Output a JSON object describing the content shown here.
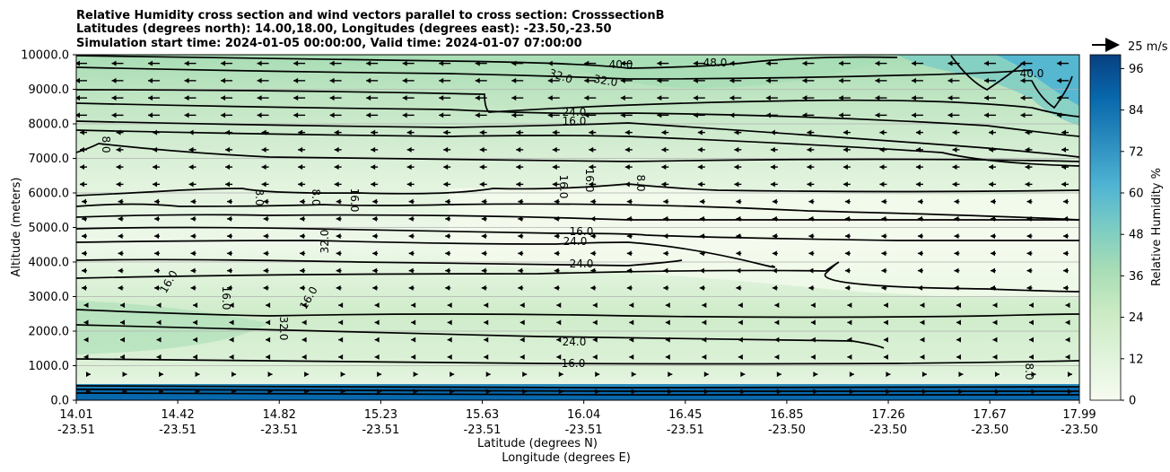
{
  "chart_data": {
    "type": "heatmap",
    "title": [
      "Relative Humidity cross section and wind vectors parallel to cross section: CrosssectionB",
      "Latitudes (degrees north): 14.00,18.00, Longitudes (degrees east): -23.50,-23.50",
      "Simulation start time: 2024-01-05 00:00:00, Valid time: 2024-01-07 07:00:00"
    ],
    "xlabel_lat": "Latitude (degrees N)",
    "xlabel_lon": "Longitude (degrees E)",
    "ylabel": "Altitude (meters)",
    "x_ticks": [
      {
        "lat": "14.01",
        "lon": "-23.51"
      },
      {
        "lat": "14.42",
        "lon": "-23.51"
      },
      {
        "lat": "14.82",
        "lon": "-23.51"
      },
      {
        "lat": "15.23",
        "lon": "-23.51"
      },
      {
        "lat": "15.63",
        "lon": "-23.51"
      },
      {
        "lat": "16.04",
        "lon": "-23.51"
      },
      {
        "lat": "16.45",
        "lon": "-23.51"
      },
      {
        "lat": "16.85",
        "lon": "-23.50"
      },
      {
        "lat": "17.26",
        "lon": "-23.50"
      },
      {
        "lat": "17.67",
        "lon": "-23.50"
      },
      {
        "lat": "17.99",
        "lon": "-23.50"
      }
    ],
    "y_ticks": [
      "0.0",
      "1000.0",
      "2000.0",
      "3000.0",
      "4000.0",
      "5000.0",
      "6000.0",
      "7000.0",
      "8000.0",
      "9000.0",
      "10000.0"
    ],
    "ylim": [
      0,
      10000
    ],
    "grid": "horizontal",
    "colorbar": {
      "label": "Relative Humidity %",
      "ticks": [
        "0",
        "12",
        "24",
        "36",
        "48",
        "60",
        "72",
        "84",
        "96"
      ],
      "range": [
        0,
        100
      ],
      "colors": [
        "#f7fcf0",
        "#e0f3db",
        "#ccebc5",
        "#a8ddb5",
        "#7bccc4",
        "#4eb3d3",
        "#2b8cbe",
        "#0868ac",
        "#084081"
      ]
    },
    "wind_key": "25 m/s",
    "contour_labels": [
      "48.0",
      "40.0",
      "40.0",
      "32.0",
      "32.0",
      "24.0",
      "16.0",
      "8.0",
      "16.0",
      "16.0",
      "16.0",
      "8.0",
      "8.0",
      "8.0",
      "16.0",
      "24.0",
      "32.0",
      "24.0",
      "16.0",
      "16.0",
      "16.0",
      "32.0",
      "24.0",
      "16.0",
      "8.0"
    ],
    "wind_field": {
      "description": "wind vectors parallel to cross section",
      "upper_levels": "strong northerly-component arrows pointing toward lower latitude above ~6000 m",
      "lower_levels": "weak arrows, pointing toward higher latitude below ~500 m"
    }
  }
}
